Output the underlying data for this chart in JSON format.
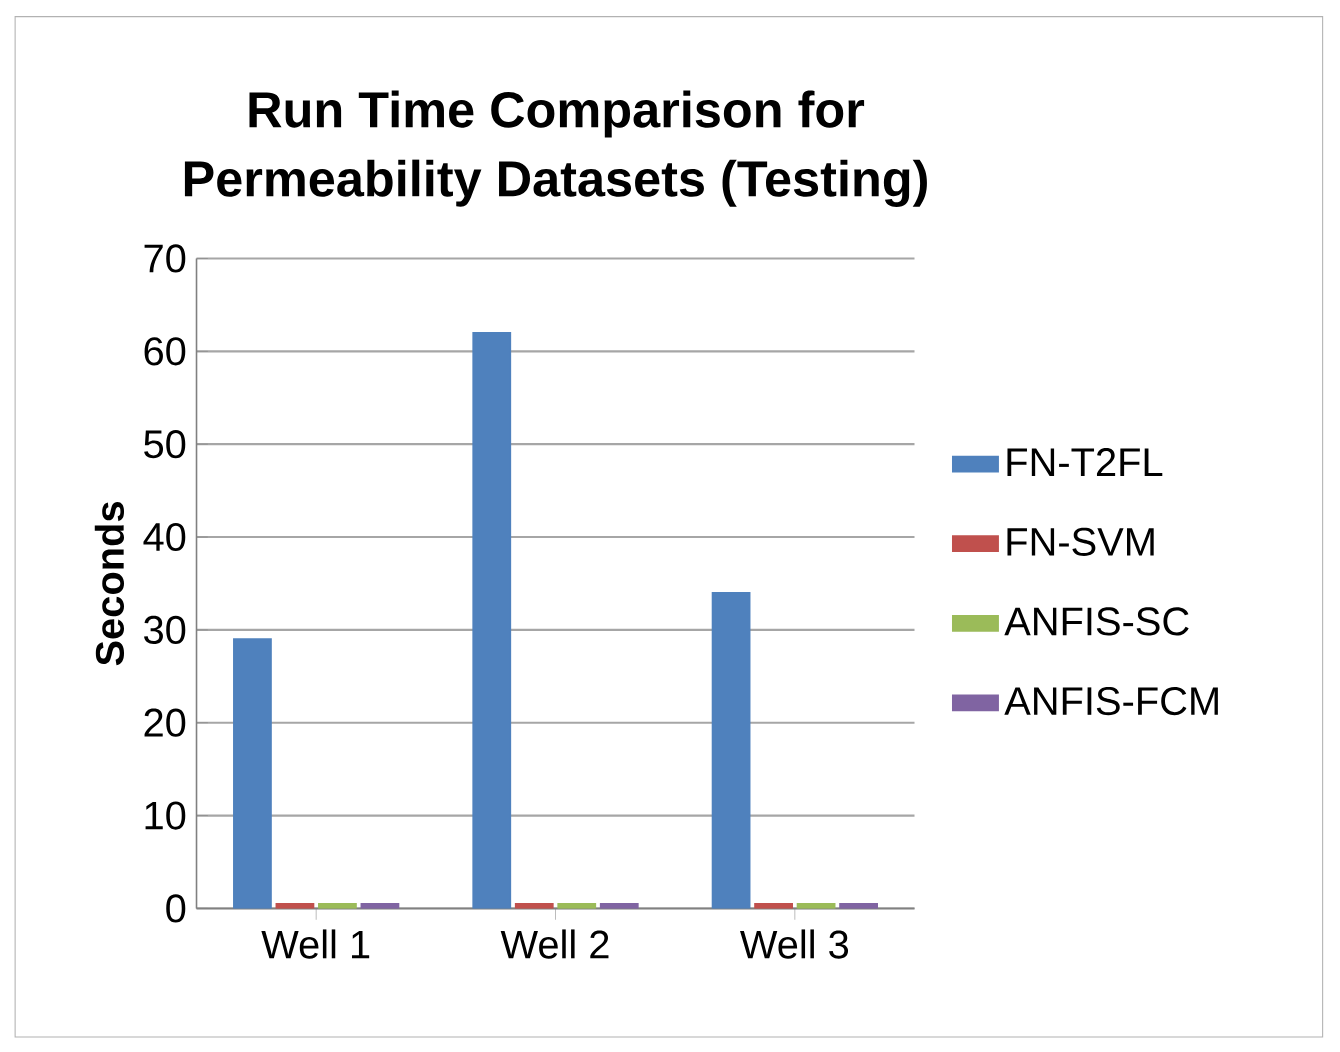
{
  "chart_data": {
    "type": "bar",
    "title": "Run Time Comparison for Permeability Datasets (Testing)",
    "ylabel": "Seconds",
    "categories": [
      "Well 1",
      "Well 2",
      "Well 3"
    ],
    "series": [
      {
        "name": "FN-T2FL",
        "color": "#4f81bd",
        "values": [
          29,
          62,
          34
        ]
      },
      {
        "name": "FN-SVM",
        "color": "#c0504d",
        "values": [
          0.5,
          0.5,
          0.5
        ]
      },
      {
        "name": "ANFIS-SC",
        "color": "#9bbb59",
        "values": [
          0.5,
          0.5,
          0.5
        ]
      },
      {
        "name": "ANFIS-FCM",
        "color": "#8064a2",
        "values": [
          0.5,
          0.5,
          0.5
        ]
      }
    ],
    "ylim": [
      0,
      70
    ],
    "yticks": [
      0,
      10,
      20,
      30,
      40,
      50,
      60,
      70
    ],
    "grid": "y",
    "legend": "right"
  }
}
